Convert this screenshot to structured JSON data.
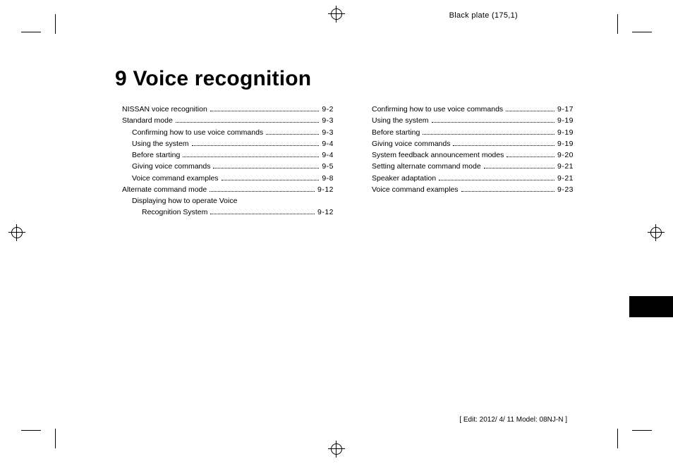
{
  "meta": {
    "plate_label": "Black plate (175,1)",
    "footer": "[ Edit: 2012/ 4/ 11   Model: 08NJ-N ]"
  },
  "chapter": {
    "number": "9",
    "title": "Voice recognition"
  },
  "toc": {
    "left": [
      {
        "label": "NISSAN voice recognition",
        "page": "9-2",
        "indent": 0
      },
      {
        "label": "Standard mode",
        "page": "9-3",
        "indent": 0
      },
      {
        "label": "Confirming how to use voice commands",
        "page": "9-3",
        "indent": 1
      },
      {
        "label": "Using the system",
        "page": "9-4",
        "indent": 1
      },
      {
        "label": "Before starting",
        "page": "9-4",
        "indent": 1
      },
      {
        "label": "Giving voice commands",
        "page": "9-5",
        "indent": 1
      },
      {
        "label": "Voice command examples",
        "page": "9-8",
        "indent": 1
      },
      {
        "label": "Alternate command mode",
        "page": "9-12",
        "indent": 0
      },
      {
        "label": "Displaying how to operate Voice",
        "page": "",
        "indent": 1,
        "nowrapleader": true
      },
      {
        "label": "Recognition System",
        "page": "9-12",
        "indent": 2
      }
    ],
    "right": [
      {
        "label": "Confirming how to use voice commands",
        "page": "9-17",
        "indent": 1
      },
      {
        "label": "Using the system",
        "page": "9-19",
        "indent": 1
      },
      {
        "label": "Before starting",
        "page": "9-19",
        "indent": 1
      },
      {
        "label": "Giving voice commands",
        "page": "9-19",
        "indent": 1
      },
      {
        "label": "System feedback announcement modes",
        "page": "9-20",
        "indent": 1
      },
      {
        "label": "Setting alternate command mode",
        "page": "9-21",
        "indent": 1
      },
      {
        "label": "Speaker adaptation",
        "page": "9-21",
        "indent": 1
      },
      {
        "label": "Voice command examples",
        "page": "9-23",
        "indent": 1
      }
    ]
  },
  "marks": {
    "color": "#000000"
  }
}
